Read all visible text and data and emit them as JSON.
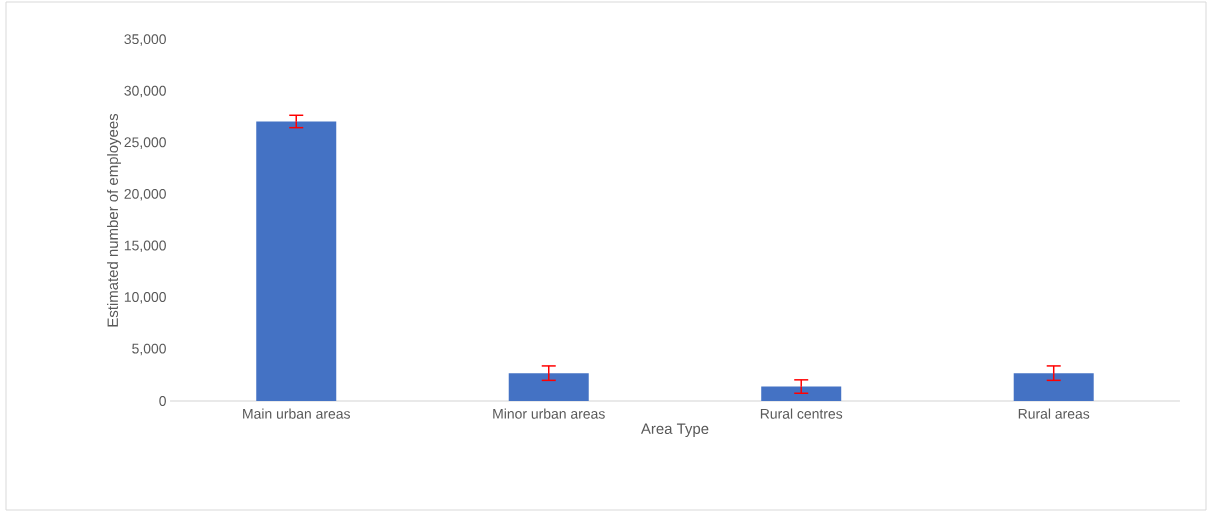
{
  "chart_data": {
    "type": "bar",
    "xlabel": "Area Type",
    "ylabel": "Estimated number of employees",
    "categories": [
      "Main urban areas",
      "Minor urban areas",
      "Rural centres",
      "Rural areas"
    ],
    "values": [
      27100,
      2700,
      1400,
      2700
    ],
    "errors": [
      600,
      700,
      650,
      700
    ],
    "color": "#4472c4",
    "ylim": [
      0,
      35000
    ],
    "yticks": [
      {
        "value": 0,
        "label": "0"
      },
      {
        "value": 5000,
        "label": "5,000"
      },
      {
        "value": 10000,
        "label": "10,000"
      },
      {
        "value": 15000,
        "label": "15,000"
      },
      {
        "value": 20000,
        "label": "20,000"
      },
      {
        "value": 25000,
        "label": "25,000"
      },
      {
        "value": 30000,
        "label": "30,000"
      },
      {
        "value": 35000,
        "label": "35,000"
      }
    ],
    "grid": false
  }
}
